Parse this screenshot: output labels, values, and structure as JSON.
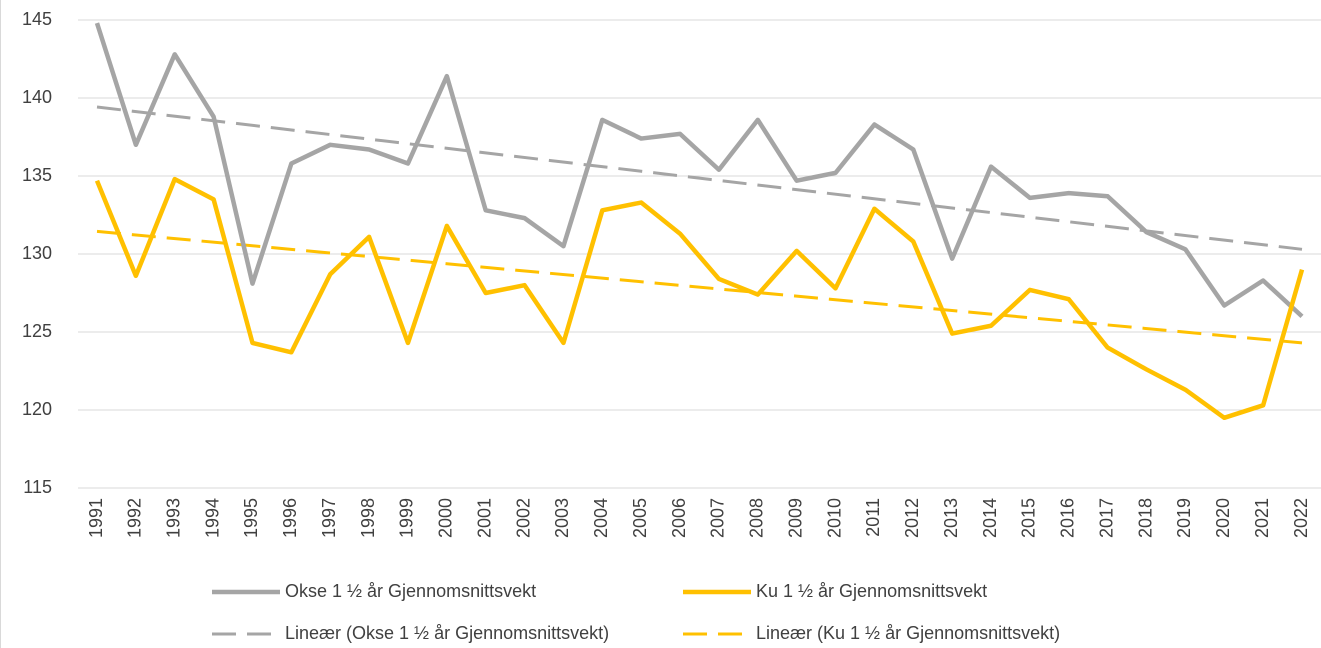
{
  "chart_data": {
    "type": "line",
    "categories": [
      "1991",
      "1992",
      "1993",
      "1994",
      "1995",
      "1996",
      "1997",
      "1998",
      "1999",
      "2000",
      "2001",
      "2002",
      "2003",
      "2004",
      "2005",
      "2006",
      "2007",
      "2008",
      "2009",
      "2010",
      "2011",
      "2012",
      "2013",
      "2014",
      "2015",
      "2016",
      "2017",
      "2018",
      "2019",
      "2020",
      "2021",
      "2022"
    ],
    "series": [
      {
        "name": "Okse 1 ½ år Gjennomsnittsvekt",
        "color": "#a5a5a5",
        "values": [
          144.8,
          137.0,
          142.8,
          138.8,
          128.1,
          135.8,
          137.0,
          136.7,
          135.8,
          141.4,
          132.8,
          132.3,
          130.5,
          138.6,
          137.4,
          137.7,
          135.4,
          138.6,
          134.7,
          135.2,
          138.3,
          136.7,
          129.7,
          135.6,
          133.6,
          133.9,
          133.7,
          131.4,
          130.3,
          126.7,
          128.3,
          126.0
        ],
        "trendline": {
          "type": "linear",
          "name": "Lineær (Okse 1 ½ år Gjennomsnittsvekt)",
          "dashed": true
        }
      },
      {
        "name": "Ku 1 ½ år Gjennomsnittsvekt",
        "color": "#ffc000",
        "values": [
          134.7,
          128.6,
          134.8,
          133.5,
          124.3,
          123.7,
          128.7,
          131.1,
          124.3,
          131.8,
          127.5,
          128.0,
          124.3,
          132.8,
          133.3,
          131.3,
          128.4,
          127.4,
          130.2,
          127.8,
          132.9,
          130.8,
          124.9,
          125.4,
          127.7,
          127.1,
          124.0,
          122.6,
          121.3,
          119.5,
          120.3,
          129.0
        ],
        "trendline": {
          "type": "linear",
          "name": "Lineær (Ku 1 ½ år Gjennomsnittsvekt)",
          "dashed": true
        }
      }
    ],
    "ylim": [
      115,
      145
    ],
    "yticks": [
      115,
      120,
      125,
      130,
      135,
      140,
      145
    ],
    "grid": true,
    "legend": "bottom"
  }
}
